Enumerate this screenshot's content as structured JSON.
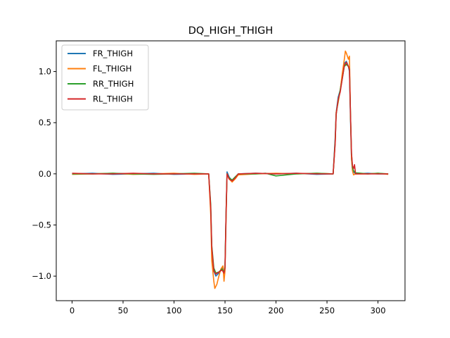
{
  "chart_data": {
    "type": "line",
    "title": "DQ_HIGH_THIGH",
    "xlabel": "",
    "ylabel": "",
    "xlim": [
      -15.5,
      326.5
    ],
    "ylim": [
      -1.24,
      1.3
    ],
    "xticks": [
      0,
      50,
      100,
      150,
      200,
      250,
      300
    ],
    "yticks": [
      -1.0,
      -0.5,
      0.0,
      0.5,
      1.0
    ],
    "xtick_labels": [
      "0",
      "50",
      "100",
      "150",
      "200",
      "250",
      "300"
    ],
    "ytick_labels": [
      "−1.0",
      "−0.5",
      "0.0",
      "0.5",
      "1.0"
    ],
    "grid": false,
    "legend_position": "upper-left",
    "series": [
      {
        "name": "FR_THIGH",
        "color": "#1f77b4",
        "points": [
          [
            0,
            0.0
          ],
          [
            20,
            0.005
          ],
          [
            40,
            -0.005
          ],
          [
            60,
            0.0
          ],
          [
            80,
            0.005
          ],
          [
            100,
            -0.005
          ],
          [
            120,
            0.0
          ],
          [
            134,
            0.0
          ],
          [
            136,
            -0.35
          ],
          [
            137,
            -0.75
          ],
          [
            139,
            -0.95
          ],
          [
            141,
            -1.0
          ],
          [
            144,
            -0.97
          ],
          [
            147,
            -0.92
          ],
          [
            149,
            -0.98
          ],
          [
            150,
            -0.92
          ],
          [
            151,
            -0.4
          ],
          [
            152,
            0.02
          ],
          [
            154,
            -0.03
          ],
          [
            157,
            -0.07
          ],
          [
            160,
            -0.04
          ],
          [
            163,
            0.0
          ],
          [
            180,
            0.005
          ],
          [
            200,
            0.0
          ],
          [
            220,
            0.005
          ],
          [
            240,
            -0.005
          ],
          [
            256,
            0.0
          ],
          [
            258,
            0.35
          ],
          [
            259,
            0.6
          ],
          [
            261,
            0.75
          ],
          [
            263,
            0.82
          ],
          [
            265,
            0.95
          ],
          [
            267,
            1.08
          ],
          [
            269,
            1.1
          ],
          [
            271,
            1.05
          ],
          [
            272,
            1.0
          ],
          [
            273,
            0.55
          ],
          [
            274,
            0.15
          ],
          [
            275,
            0.05
          ],
          [
            276,
            0.02
          ],
          [
            278,
            0.0
          ],
          [
            290,
            0.005
          ],
          [
            300,
            0.0
          ],
          [
            310,
            0.0
          ]
        ]
      },
      {
        "name": "FL_THIGH",
        "color": "#ff7f0e",
        "points": [
          [
            0,
            -0.005
          ],
          [
            20,
            0.0
          ],
          [
            40,
            0.005
          ],
          [
            60,
            -0.005
          ],
          [
            80,
            0.0
          ],
          [
            100,
            0.005
          ],
          [
            120,
            -0.005
          ],
          [
            134,
            0.0
          ],
          [
            136,
            -0.4
          ],
          [
            137,
            -0.85
          ],
          [
            139,
            -1.05
          ],
          [
            140,
            -1.12
          ],
          [
            142,
            -1.08
          ],
          [
            144,
            -1.0
          ],
          [
            146,
            -0.93
          ],
          [
            148,
            -0.9
          ],
          [
            149,
            -1.05
          ],
          [
            150,
            -0.95
          ],
          [
            151,
            -0.45
          ],
          [
            152,
            0.0
          ],
          [
            154,
            -0.05
          ],
          [
            157,
            -0.08
          ],
          [
            160,
            -0.05
          ],
          [
            163,
            -0.01
          ],
          [
            180,
            0.0
          ],
          [
            200,
            0.005
          ],
          [
            220,
            0.0
          ],
          [
            240,
            0.005
          ],
          [
            256,
            0.0
          ],
          [
            258,
            0.3
          ],
          [
            259,
            0.6
          ],
          [
            261,
            0.7
          ],
          [
            263,
            0.82
          ],
          [
            265,
            0.98
          ],
          [
            267,
            1.12
          ],
          [
            268,
            1.2
          ],
          [
            269,
            1.18
          ],
          [
            271,
            1.12
          ],
          [
            272,
            1.15
          ],
          [
            273,
            0.6
          ],
          [
            274,
            0.15
          ],
          [
            275,
            0.03
          ],
          [
            276,
            -0.01
          ],
          [
            278,
            0.0
          ],
          [
            290,
            0.0
          ],
          [
            300,
            0.005
          ],
          [
            310,
            -0.005
          ]
        ]
      },
      {
        "name": "RR_THIGH",
        "color": "#2ca02c",
        "points": [
          [
            0,
            0.0
          ],
          [
            20,
            0.0
          ],
          [
            40,
            0.005
          ],
          [
            60,
            0.0
          ],
          [
            80,
            -0.005
          ],
          [
            100,
            0.0
          ],
          [
            120,
            0.005
          ],
          [
            134,
            0.0
          ],
          [
            136,
            -0.3
          ],
          [
            137,
            -0.7
          ],
          [
            139,
            -0.92
          ],
          [
            141,
            -0.97
          ],
          [
            144,
            -0.96
          ],
          [
            147,
            -0.93
          ],
          [
            149,
            -0.96
          ],
          [
            150,
            -0.9
          ],
          [
            151,
            -0.38
          ],
          [
            152,
            0.0
          ],
          [
            154,
            -0.04
          ],
          [
            157,
            -0.06
          ],
          [
            160,
            -0.03
          ],
          [
            163,
            0.0
          ],
          [
            180,
            0.0
          ],
          [
            190,
            0.005
          ],
          [
            200,
            -0.02
          ],
          [
            220,
            0.0
          ],
          [
            240,
            0.005
          ],
          [
            256,
            0.0
          ],
          [
            258,
            0.32
          ],
          [
            259,
            0.58
          ],
          [
            261,
            0.72
          ],
          [
            263,
            0.82
          ],
          [
            265,
            0.93
          ],
          [
            267,
            1.05
          ],
          [
            269,
            1.07
          ],
          [
            271,
            1.05
          ],
          [
            272,
            1.02
          ],
          [
            273,
            0.6
          ],
          [
            274,
            0.2
          ],
          [
            275,
            0.06
          ],
          [
            276,
            0.03
          ],
          [
            278,
            0.01
          ],
          [
            290,
            0.0
          ],
          [
            300,
            0.005
          ],
          [
            310,
            0.0
          ]
        ]
      },
      {
        "name": "RL_THIGH",
        "color": "#d62728",
        "points": [
          [
            0,
            0.005
          ],
          [
            20,
            0.0
          ],
          [
            40,
            0.0
          ],
          [
            60,
            0.005
          ],
          [
            80,
            0.0
          ],
          [
            100,
            0.0
          ],
          [
            120,
            0.0
          ],
          [
            134,
            0.0
          ],
          [
            136,
            -0.33
          ],
          [
            137,
            -0.72
          ],
          [
            139,
            -0.95
          ],
          [
            141,
            -0.98
          ],
          [
            144,
            -0.96
          ],
          [
            147,
            -0.94
          ],
          [
            149,
            -0.97
          ],
          [
            150,
            -0.92
          ],
          [
            151,
            -0.4
          ],
          [
            152,
            0.0
          ],
          [
            154,
            -0.05
          ],
          [
            157,
            -0.07
          ],
          [
            160,
            -0.04
          ],
          [
            163,
            0.0
          ],
          [
            180,
            0.005
          ],
          [
            200,
            0.0
          ],
          [
            220,
            0.005
          ],
          [
            240,
            0.0
          ],
          [
            256,
            0.0
          ],
          [
            258,
            0.3
          ],
          [
            259,
            0.58
          ],
          [
            261,
            0.73
          ],
          [
            263,
            0.8
          ],
          [
            265,
            0.93
          ],
          [
            267,
            1.06
          ],
          [
            269,
            1.09
          ],
          [
            271,
            1.05
          ],
          [
            272,
            1.02
          ],
          [
            273,
            0.6
          ],
          [
            274,
            0.2
          ],
          [
            275,
            0.08
          ],
          [
            276,
            0.05
          ],
          [
            277,
            0.09
          ],
          [
            278,
            0.0
          ],
          [
            290,
            0.0
          ],
          [
            300,
            0.0
          ],
          [
            310,
            0.0
          ]
        ]
      }
    ]
  }
}
